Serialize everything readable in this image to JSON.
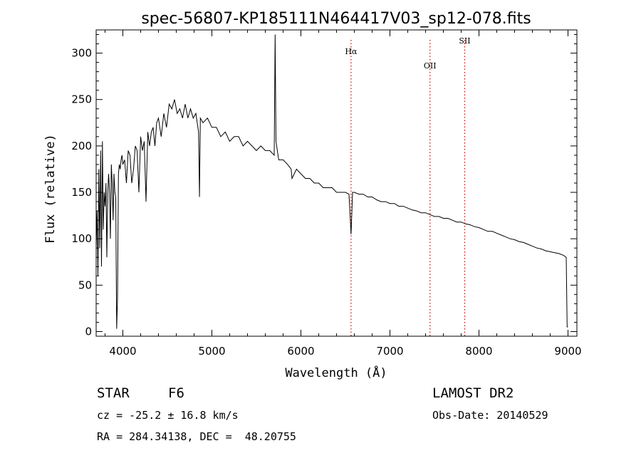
{
  "chart_data": {
    "type": "line",
    "title": "spec-56807-KP185111N464417V03_sp12-078.fits",
    "xlabel": "Wavelength (Å)",
    "ylabel": "Flux (relative)",
    "xlim": [
      3700,
      9100
    ],
    "ylim": [
      -5,
      325
    ],
    "xticks": [
      4000,
      5000,
      6000,
      7000,
      8000,
      9000
    ],
    "yticks": [
      0,
      50,
      100,
      150,
      200,
      250,
      300
    ],
    "xtick_labels": [
      "4000",
      "5000",
      "6000",
      "7000",
      "8000",
      "9000"
    ],
    "ytick_labels": [
      "0",
      "50",
      "100",
      "150",
      "200",
      "250",
      "300"
    ],
    "grid": false,
    "line_color": "#000000",
    "marker_color": "#d00000",
    "series": [
      {
        "x": [
          3700,
          3710,
          3720,
          3730,
          3740,
          3750,
          3760,
          3770,
          3780,
          3790,
          3800,
          3810,
          3820,
          3830,
          3840,
          3850,
          3860,
          3870,
          3880,
          3890,
          3900,
          3910,
          3920,
          3930,
          3940,
          3950,
          3960,
          3970,
          3980,
          3990,
          4000,
          4020,
          4040,
          4060,
          4080,
          4100,
          4120,
          4140,
          4160,
          4180,
          4200,
          4220,
          4240,
          4260,
          4280,
          4300,
          4320,
          4340,
          4360,
          4380,
          4400,
          4430,
          4460,
          4490,
          4520,
          4550,
          4580,
          4610,
          4640,
          4670,
          4700,
          4730,
          4760,
          4790,
          4820,
          4850,
          4861,
          4870,
          4900,
          4950,
          5000,
          5050,
          5100,
          5150,
          5200,
          5250,
          5300,
          5350,
          5400,
          5450,
          5500,
          5550,
          5600,
          5650,
          5700,
          5710,
          5720,
          5750,
          5800,
          5850,
          5890,
          5900,
          5950,
          6000,
          6050,
          6100,
          6150,
          6200,
          6250,
          6300,
          6350,
          6400,
          6450,
          6500,
          6540,
          6563,
          6580,
          6600,
          6650,
          6700,
          6750,
          6800,
          6850,
          6900,
          6950,
          7000,
          7050,
          7100,
          7150,
          7200,
          7250,
          7300,
          7350,
          7400,
          7450,
          7500,
          7550,
          7600,
          7650,
          7700,
          7750,
          7800,
          7850,
          7900,
          7950,
          8000,
          8050,
          8100,
          8150,
          8200,
          8250,
          8300,
          8350,
          8400,
          8450,
          8500,
          8550,
          8600,
          8650,
          8700,
          8750,
          8800,
          8850,
          8900,
          8950,
          8980,
          8990,
          9000
        ],
        "y": [
          90,
          130,
          60,
          175,
          90,
          195,
          70,
          205,
          110,
          150,
          135,
          160,
          80,
          150,
          170,
          150,
          100,
          180,
          160,
          120,
          170,
          150,
          145,
          3,
          35,
          170,
          180,
          175,
          185,
          190,
          180,
          185,
          160,
          195,
          190,
          160,
          175,
          200,
          195,
          150,
          210,
          195,
          205,
          140,
          215,
          200,
          215,
          220,
          200,
          225,
          230,
          210,
          235,
          220,
          245,
          240,
          250,
          235,
          240,
          230,
          245,
          230,
          240,
          230,
          235,
          215,
          145,
          230,
          225,
          230,
          220,
          220,
          210,
          215,
          205,
          210,
          210,
          200,
          205,
          200,
          195,
          200,
          195,
          195,
          190,
          320,
          205,
          185,
          185,
          180,
          175,
          165,
          175,
          170,
          165,
          165,
          160,
          160,
          155,
          155,
          155,
          150,
          150,
          150,
          148,
          105,
          150,
          150,
          148,
          148,
          145,
          145,
          142,
          140,
          140,
          138,
          138,
          135,
          135,
          133,
          131,
          130,
          128,
          128,
          126,
          124,
          124,
          122,
          122,
          120,
          118,
          118,
          116,
          115,
          113,
          112,
          110,
          108,
          108,
          106,
          104,
          102,
          100,
          99,
          97,
          96,
          94,
          92,
          90,
          89,
          87,
          86,
          85,
          84,
          82,
          80,
          5,
          5
        ]
      }
    ],
    "annotations": [
      {
        "label": "Hα",
        "x": 6563
      },
      {
        "label": "OII",
        "x": 7450
      },
      {
        "label": "SII",
        "x": 7840
      }
    ]
  },
  "info": {
    "object_type": "STAR",
    "subclass": "F6",
    "survey": "LAMOST DR2",
    "cz": "cz = -25.2 ± 16.8 km/s",
    "obs_date": "Obs-Date: 20140529",
    "coords": "RA = 284.34138, DEC =  48.20755"
  }
}
